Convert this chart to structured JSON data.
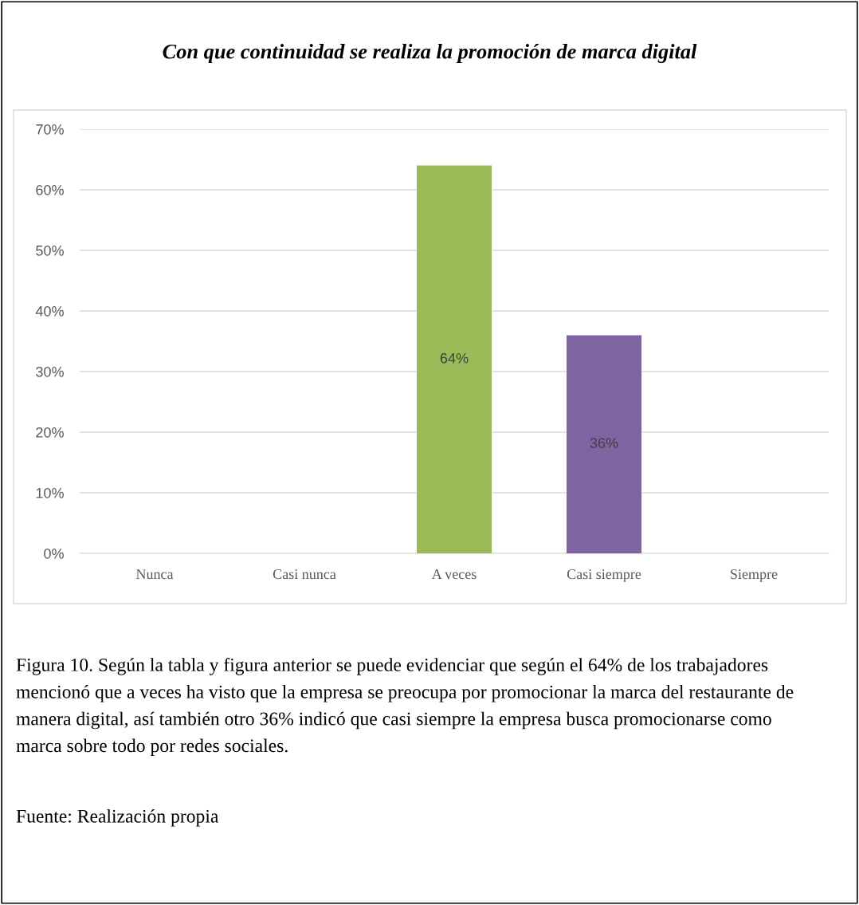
{
  "chart_data": {
    "type": "bar",
    "title": "Con que continuidad se realiza la promoción de marca digital",
    "categories": [
      "Nunca",
      "Casi nunca",
      "A veces",
      "Casi siempre",
      "Siempre"
    ],
    "values": [
      0,
      0,
      64,
      36,
      0
    ],
    "colors": [
      "#9bbb59",
      "#9bbb59",
      "#9bbb59",
      "#8064a2",
      "#9bbb59"
    ],
    "value_labels": [
      null,
      null,
      "64%",
      "36%",
      null
    ],
    "ylim": [
      0,
      70
    ],
    "yticks": [
      {
        "value": 0,
        "label": "0%"
      },
      {
        "value": 10,
        "label": "10%"
      },
      {
        "value": 20,
        "label": "20%"
      },
      {
        "value": 30,
        "label": "30%"
      },
      {
        "value": 40,
        "label": "40%"
      },
      {
        "value": 50,
        "label": "50%"
      },
      {
        "value": 60,
        "label": "60%"
      },
      {
        "value": 70,
        "label": "70%"
      }
    ],
    "grid": "y",
    "annotations": [
      "Figura 10. Según la tabla y figura anterior se puede evidenciar que según el 64% de los trabajadores mencionó que a veces ha visto que la empresa se preocupa por promocionar la marca del restaurante de manera digital, así también otro 36% indicó que casi siempre la empresa busca promocionarse como marca sobre todo por redes sociales.",
      "Fuente: Realización propia"
    ]
  }
}
